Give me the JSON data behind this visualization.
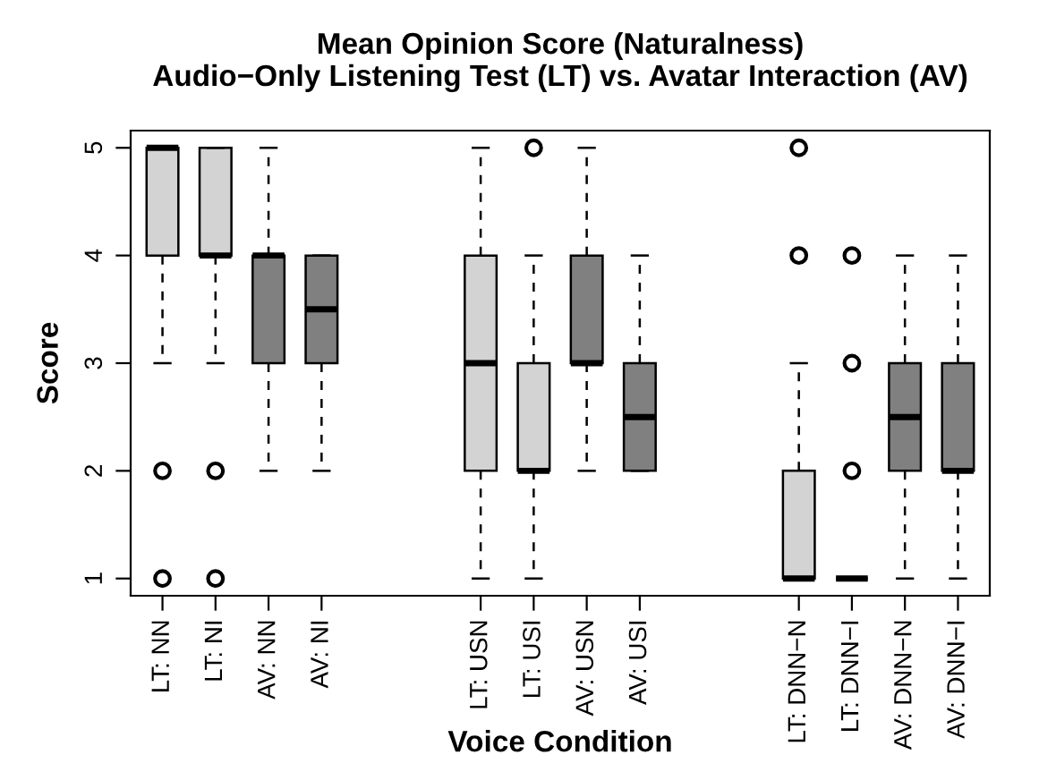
{
  "chart_data": {
    "type": "box",
    "title": "Mean Opinion Score (Naturalness)\nAudio−Only Listening Test (LT) vs. Avatar Interaction (AV)",
    "xlabel": "Voice Condition",
    "ylabel": "Score",
    "categories": [
      "LT: NN",
      "LT: NI",
      "AV: NN",
      "AV: NI",
      null,
      null,
      "LT: USN",
      "LT: USI",
      "AV: USN",
      "AV: USI",
      null,
      null,
      "LT: DNN−N",
      "LT: DNN−I",
      "AV: DNN−N",
      "AV: DNN−I"
    ],
    "colors": [
      "#d3d3d3",
      "#d3d3d3",
      "#808080",
      "#808080",
      null,
      null,
      "#d3d3d3",
      "#d3d3d3",
      "#808080",
      "#808080",
      null,
      null,
      "#d3d3d3",
      null,
      "#808080",
      "#808080"
    ],
    "boxes": [
      {
        "low": 3,
        "q1": 4,
        "median": 5,
        "q3": 5,
        "high": 5,
        "outliers": [
          2,
          1
        ]
      },
      {
        "low": 3,
        "q1": 4,
        "median": 4,
        "q3": 5,
        "high": 5,
        "outliers": [
          2,
          1
        ]
      },
      {
        "low": 2,
        "q1": 3,
        "median": 4,
        "q3": 4,
        "high": 5
      },
      {
        "low": 2,
        "q1": 3,
        "median": 3.5,
        "q3": 4,
        "high": 4
      },
      null,
      null,
      {
        "low": 1,
        "q1": 2,
        "median": 3,
        "q3": 4,
        "high": 5
      },
      {
        "low": 1,
        "q1": 2,
        "median": 2,
        "q3": 3,
        "high": 4,
        "outliers": [
          5
        ]
      },
      {
        "low": 2,
        "q1": 3,
        "median": 3,
        "q3": 4,
        "high": 5
      },
      {
        "low": 2,
        "q1": 2,
        "median": 2.5,
        "q3": 3,
        "high": 4
      },
      null,
      null,
      {
        "low": 1,
        "q1": 1,
        "median": 1,
        "q3": 2,
        "high": 3,
        "outliers": [
          5,
          4
        ]
      },
      {
        "low": 1,
        "q1": 1,
        "median": 1,
        "q3": 1,
        "high": 1,
        "outliers": [
          4,
          3,
          2
        ]
      },
      {
        "low": 1,
        "q1": 2,
        "median": 2.5,
        "q3": 3,
        "high": 4
      },
      {
        "low": 1,
        "q1": 2,
        "median": 2,
        "q3": 3,
        "high": 4
      }
    ],
    "ylim": [
      0.84,
      5.16
    ],
    "yticks": [
      1,
      2,
      3,
      4,
      5
    ],
    "grid": false
  }
}
